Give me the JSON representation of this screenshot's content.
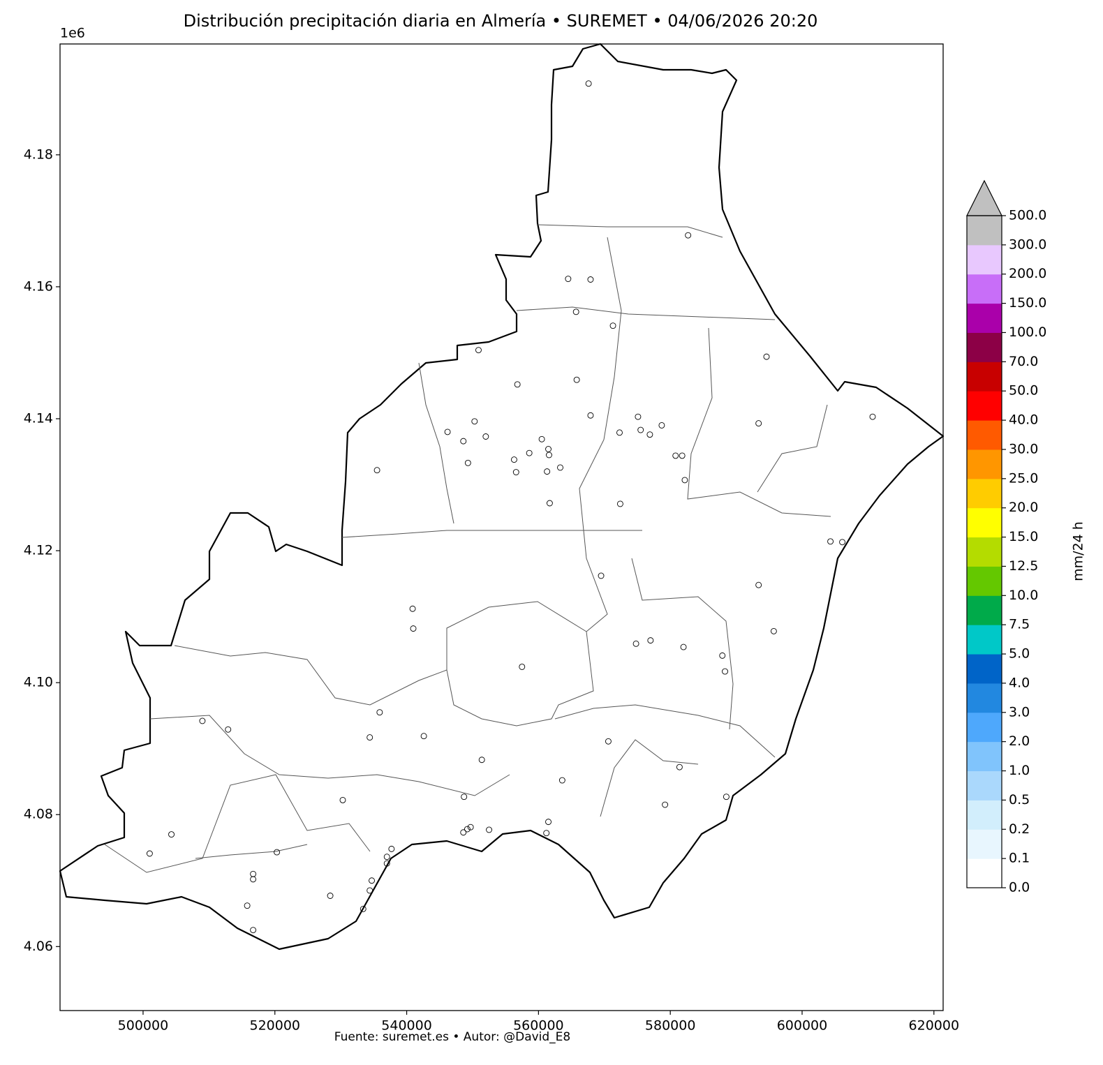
{
  "chart_data": {
    "type": "scatter",
    "title": "Distribución precipitación diaria en Almería • SUREMET • 04/06/2026 20:20",
    "footer": "Fuente: suremet.es  •  Autor: @David_E8",
    "y_offset_label": "1e6",
    "xlim": [
      487400,
      621400
    ],
    "ylim": [
      4050300,
      4196800
    ],
    "xticks": [
      500000,
      520000,
      540000,
      560000,
      580000,
      600000,
      620000
    ],
    "yticks": [
      {
        "value": 4060000,
        "label": "4.06"
      },
      {
        "value": 4080000,
        "label": "4.08"
      },
      {
        "value": 4100000,
        "label": "4.10"
      },
      {
        "value": 4120000,
        "label": "4.12"
      },
      {
        "value": 4140000,
        "label": "4.14"
      },
      {
        "value": 4160000,
        "label": "4.16"
      },
      {
        "value": 4180000,
        "label": "4.18"
      }
    ],
    "marker_color": "#000000",
    "x": [
      567600,
      582700,
      564500,
      567900,
      565700,
      571300,
      550900,
      594600,
      556800,
      565800,
      567900,
      575100,
      578700,
      575500,
      576900,
      593400,
      610700,
      546200,
      550300,
      548600,
      552000,
      549300,
      535500,
      560500,
      561500,
      561600,
      558600,
      556300,
      556600,
      563300,
      561300,
      580800,
      581800,
      582200,
      572300,
      561700,
      572400,
      604300,
      606100,
      569500,
      593400,
      540900,
      541000,
      595700,
      574800,
      577000,
      582000,
      587900,
      588300,
      557500,
      535900,
      509000,
      512900,
      542600,
      534400,
      570600,
      551400,
      581400,
      563600,
      588500,
      548700,
      530300,
      579200,
      561500,
      561200,
      552500,
      549700,
      549200,
      548600,
      504300,
      501000,
      520300,
      537700,
      537000,
      537000,
      516700,
      516700,
      534700,
      534400,
      528400,
      515800,
      533400,
      516700
    ],
    "y": [
      4190800,
      4167800,
      4161200,
      4161100,
      4156200,
      4154100,
      4150400,
      4149400,
      4145200,
      4145900,
      4140500,
      4140300,
      4139000,
      4138300,
      4137600,
      4139300,
      4140300,
      4138000,
      4139600,
      4136600,
      4137300,
      4133300,
      4132200,
      4136900,
      4135400,
      4134500,
      4134800,
      4133800,
      4131900,
      4132600,
      4132000,
      4134400,
      4134400,
      4130700,
      4137900,
      4127200,
      4127100,
      4121400,
      4121300,
      4116200,
      4114800,
      4111200,
      4108200,
      4107800,
      4105900,
      4106400,
      4105400,
      4104100,
      4101700,
      4102400,
      4095500,
      4094200,
      4092900,
      4091900,
      4091700,
      4091100,
      4088300,
      4087200,
      4085200,
      4082700,
      4082700,
      4082200,
      4081500,
      4078900,
      4077200,
      4077700,
      4078100,
      4077800,
      4077300,
      4077000,
      4074100,
      4074300,
      4074800,
      4073600,
      4072600,
      4071000,
      4070200,
      4070000,
      4068500,
      4067700,
      4066200,
      4065700,
      4062500
    ],
    "colorbar": {
      "label": "mm/24 h",
      "ticks": [
        {
          "value": 0,
          "label": "0.0"
        },
        0.1,
        0.2,
        0.5,
        {
          "value": 1,
          "label": "1.0"
        },
        {
          "value": 2,
          "label": "2.0"
        },
        {
          "value": 3,
          "label": "3.0"
        },
        {
          "value": 4,
          "label": "4.0"
        },
        {
          "value": 5,
          "label": "5.0"
        },
        7.5,
        {
          "value": 10,
          "label": "10.0"
        },
        12.5,
        {
          "value": 15,
          "label": "15.0"
        },
        {
          "value": 20,
          "label": "20.0"
        },
        {
          "value": 25,
          "label": "25.0"
        },
        {
          "value": 30,
          "label": "30.0"
        },
        {
          "value": 40,
          "label": "40.0"
        },
        {
          "value": 50,
          "label": "50.0"
        },
        {
          "value": 70,
          "label": "70.0"
        },
        {
          "value": 100,
          "label": "100.0"
        },
        {
          "value": 150,
          "label": "150.0"
        },
        {
          "value": 200,
          "label": "200.0"
        },
        {
          "value": 300,
          "label": "300.0"
        },
        {
          "value": 500,
          "label": "500.0"
        }
      ],
      "colors": [
        "#ffffff",
        "#e8f6fe",
        "#d2eefc",
        "#aad8fc",
        "#80c4fc",
        "#4ea8fc",
        "#2288e0",
        "#0064c8",
        "#00c8c8",
        "#00aa4a",
        "#64c800",
        "#b4dc00",
        "#ffff00",
        "#ffcc00",
        "#ff9600",
        "#ff5a00",
        "#ff0000",
        "#c80000",
        "#8c0046",
        "#aa00aa",
        "#c86ef8",
        "#e8c8fe",
        "#c0c0c0"
      ],
      "extend_color": "#c0c0c0"
    }
  }
}
